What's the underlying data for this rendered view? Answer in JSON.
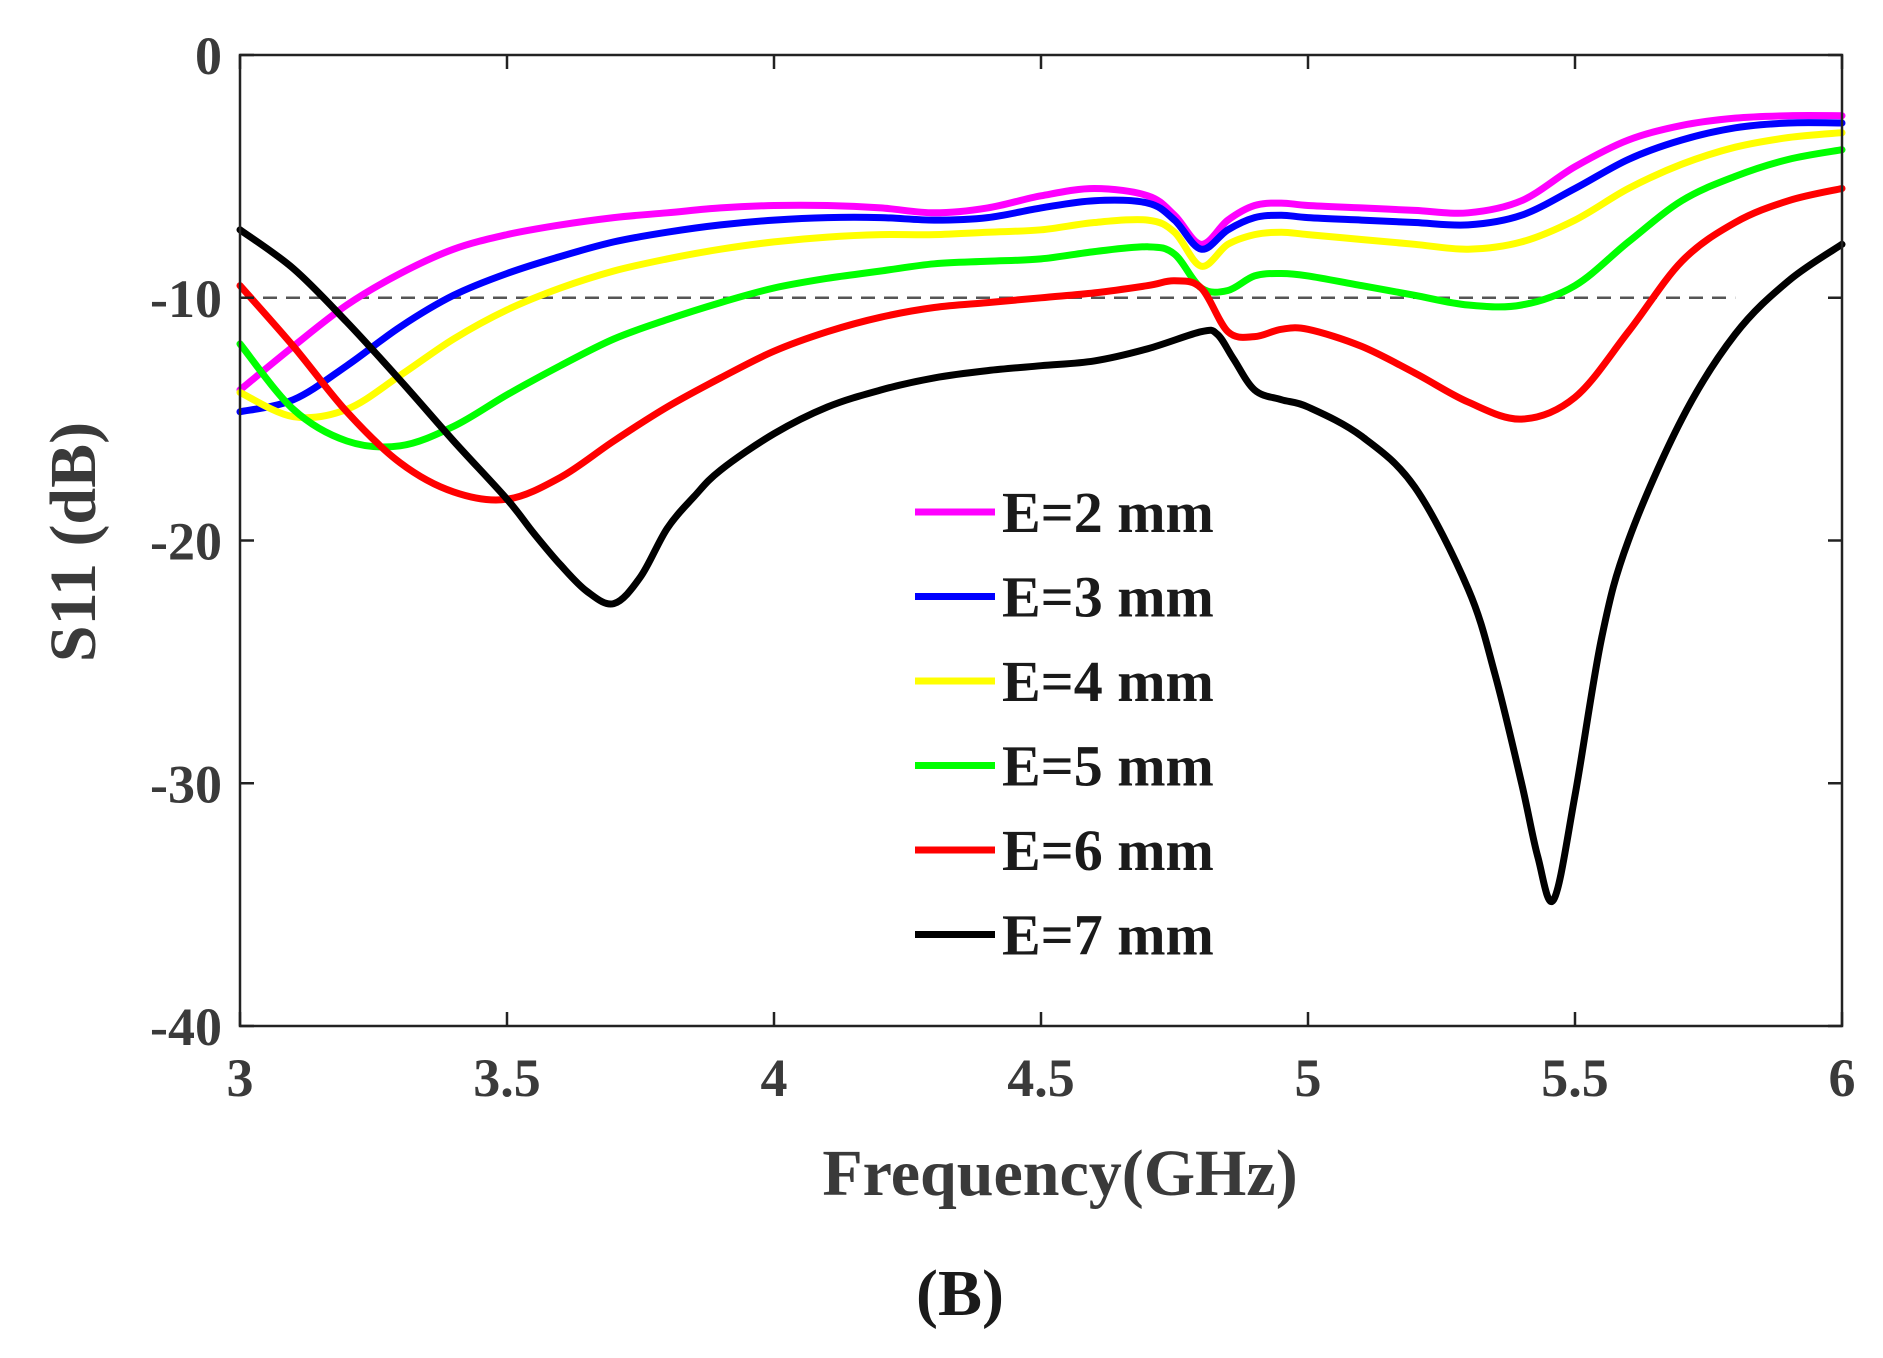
{
  "chart_data": {
    "type": "line",
    "xlabel": "Frequency(GHz)",
    "ylabel": "S11 (dB)",
    "panel_label": "(B)",
    "xlim": [
      3,
      6
    ],
    "ylim": [
      -40,
      0
    ],
    "xticks": [
      3,
      3.5,
      4,
      4.5,
      5,
      5.5,
      6
    ],
    "xtick_labels": [
      "3",
      "3.5",
      "4",
      "4.5",
      "5",
      "5.5",
      "6"
    ],
    "yticks": [
      0,
      -10,
      -20,
      -30,
      -40
    ],
    "ytick_labels": [
      "0",
      "-10",
      "-20",
      "-30",
      "-40"
    ],
    "legend_position": "center",
    "reference_line": {
      "y": -10,
      "x_end": 5.8,
      "style": "dashed",
      "color": "#555555"
    },
    "series": [
      {
        "name": "E=2 mm",
        "color": "#ff00ff",
        "x": [
          3.0,
          3.1,
          3.2,
          3.3,
          3.4,
          3.5,
          3.6,
          3.7,
          3.8,
          3.9,
          4.0,
          4.1,
          4.2,
          4.3,
          4.4,
          4.5,
          4.6,
          4.7,
          4.75,
          4.8,
          4.85,
          4.9,
          4.95,
          5.0,
          5.1,
          5.2,
          5.3,
          5.4,
          5.5,
          5.6,
          5.7,
          5.8,
          5.9,
          6.0
        ],
        "y": [
          -13.8,
          -12.0,
          -10.3,
          -9.0,
          -8.0,
          -7.4,
          -7.0,
          -6.7,
          -6.5,
          -6.3,
          -6.2,
          -6.2,
          -6.3,
          -6.5,
          -6.3,
          -5.8,
          -5.5,
          -5.8,
          -6.6,
          -7.8,
          -6.8,
          -6.2,
          -6.1,
          -6.2,
          -6.3,
          -6.4,
          -6.5,
          -6.0,
          -4.6,
          -3.5,
          -2.9,
          -2.6,
          -2.5,
          -2.5
        ]
      },
      {
        "name": "E=3 mm",
        "color": "#0000ff",
        "x": [
          3.0,
          3.1,
          3.2,
          3.3,
          3.4,
          3.5,
          3.6,
          3.7,
          3.8,
          3.9,
          4.0,
          4.1,
          4.2,
          4.3,
          4.4,
          4.5,
          4.6,
          4.7,
          4.75,
          4.8,
          4.85,
          4.9,
          4.95,
          5.0,
          5.1,
          5.2,
          5.3,
          5.4,
          5.5,
          5.6,
          5.7,
          5.8,
          5.9,
          6.0
        ],
        "y": [
          -14.7,
          -14.2,
          -12.8,
          -11.2,
          -9.9,
          -9.0,
          -8.3,
          -7.7,
          -7.3,
          -7.0,
          -6.8,
          -6.7,
          -6.7,
          -6.8,
          -6.7,
          -6.3,
          -6.0,
          -6.1,
          -6.8,
          -8.0,
          -7.2,
          -6.7,
          -6.6,
          -6.7,
          -6.8,
          -6.9,
          -7.0,
          -6.6,
          -5.5,
          -4.3,
          -3.5,
          -3.0,
          -2.8,
          -2.8
        ]
      },
      {
        "name": "E=4 mm",
        "color": "#ffff00",
        "x": [
          3.0,
          3.1,
          3.2,
          3.3,
          3.4,
          3.5,
          3.6,
          3.7,
          3.8,
          3.9,
          4.0,
          4.1,
          4.2,
          4.3,
          4.4,
          4.5,
          4.6,
          4.7,
          4.75,
          4.8,
          4.85,
          4.9,
          4.95,
          5.0,
          5.1,
          5.2,
          5.3,
          5.4,
          5.5,
          5.6,
          5.7,
          5.8,
          5.9,
          6.0
        ],
        "y": [
          -13.9,
          -14.9,
          -14.6,
          -13.2,
          -11.7,
          -10.5,
          -9.6,
          -8.9,
          -8.4,
          -8.0,
          -7.7,
          -7.5,
          -7.4,
          -7.4,
          -7.3,
          -7.2,
          -6.9,
          -6.8,
          -7.3,
          -8.7,
          -7.8,
          -7.4,
          -7.3,
          -7.4,
          -7.6,
          -7.8,
          -8.0,
          -7.7,
          -6.8,
          -5.5,
          -4.5,
          -3.8,
          -3.4,
          -3.2
        ]
      },
      {
        "name": "E=5 mm",
        "color": "#00ff00",
        "x": [
          3.0,
          3.1,
          3.2,
          3.3,
          3.4,
          3.5,
          3.6,
          3.7,
          3.8,
          3.9,
          4.0,
          4.1,
          4.2,
          4.3,
          4.4,
          4.5,
          4.6,
          4.7,
          4.75,
          4.8,
          4.85,
          4.9,
          4.95,
          5.0,
          5.1,
          5.2,
          5.3,
          5.4,
          5.5,
          5.6,
          5.7,
          5.8,
          5.9,
          6.0
        ],
        "y": [
          -11.9,
          -14.6,
          -15.9,
          -16.1,
          -15.3,
          -14.0,
          -12.8,
          -11.7,
          -10.9,
          -10.2,
          -9.6,
          -9.2,
          -8.9,
          -8.6,
          -8.5,
          -8.4,
          -8.1,
          -7.9,
          -8.2,
          -9.6,
          -9.7,
          -9.1,
          -9.0,
          -9.1,
          -9.5,
          -9.9,
          -10.3,
          -10.3,
          -9.5,
          -7.7,
          -6.0,
          -5.0,
          -4.3,
          -3.9
        ]
      },
      {
        "name": "E=6 mm",
        "color": "#ff0000",
        "x": [
          3.0,
          3.1,
          3.2,
          3.3,
          3.4,
          3.5,
          3.6,
          3.7,
          3.8,
          3.9,
          4.0,
          4.1,
          4.2,
          4.3,
          4.4,
          4.5,
          4.6,
          4.7,
          4.75,
          4.8,
          4.85,
          4.9,
          4.95,
          5.0,
          5.1,
          5.2,
          5.3,
          5.4,
          5.5,
          5.6,
          5.7,
          5.8,
          5.9,
          6.0
        ],
        "y": [
          -9.5,
          -12.0,
          -14.7,
          -16.8,
          -18.0,
          -18.3,
          -17.4,
          -15.9,
          -14.5,
          -13.3,
          -12.2,
          -11.4,
          -10.8,
          -10.4,
          -10.2,
          -10.0,
          -9.8,
          -9.5,
          -9.3,
          -9.6,
          -11.4,
          -11.6,
          -11.3,
          -11.3,
          -12.0,
          -13.1,
          -14.3,
          -15.0,
          -14.1,
          -11.4,
          -8.5,
          -6.9,
          -6.0,
          -5.5
        ]
      },
      {
        "name": "E=7 mm",
        "color": "#000000",
        "x": [
          3.0,
          3.1,
          3.2,
          3.3,
          3.4,
          3.5,
          3.55,
          3.6,
          3.65,
          3.7,
          3.75,
          3.8,
          3.85,
          3.9,
          4.0,
          4.1,
          4.2,
          4.3,
          4.4,
          4.5,
          4.6,
          4.7,
          4.8,
          4.83,
          4.86,
          4.9,
          4.95,
          5.0,
          5.1,
          5.2,
          5.3,
          5.35,
          5.4,
          5.43,
          5.46,
          5.5,
          5.55,
          5.6,
          5.7,
          5.8,
          5.9,
          6.0
        ],
        "y": [
          -7.2,
          -8.8,
          -11.0,
          -13.4,
          -15.9,
          -18.3,
          -19.7,
          -21.0,
          -22.1,
          -22.6,
          -21.5,
          -19.5,
          -18.2,
          -17.1,
          -15.6,
          -14.5,
          -13.8,
          -13.3,
          -13.0,
          -12.8,
          -12.6,
          -12.1,
          -11.4,
          -11.5,
          -12.5,
          -13.8,
          -14.2,
          -14.5,
          -15.7,
          -17.8,
          -22.0,
          -25.5,
          -30.0,
          -33.0,
          -34.8,
          -30.5,
          -24.0,
          -20.0,
          -15.0,
          -11.5,
          -9.3,
          -7.8
        ]
      }
    ]
  }
}
